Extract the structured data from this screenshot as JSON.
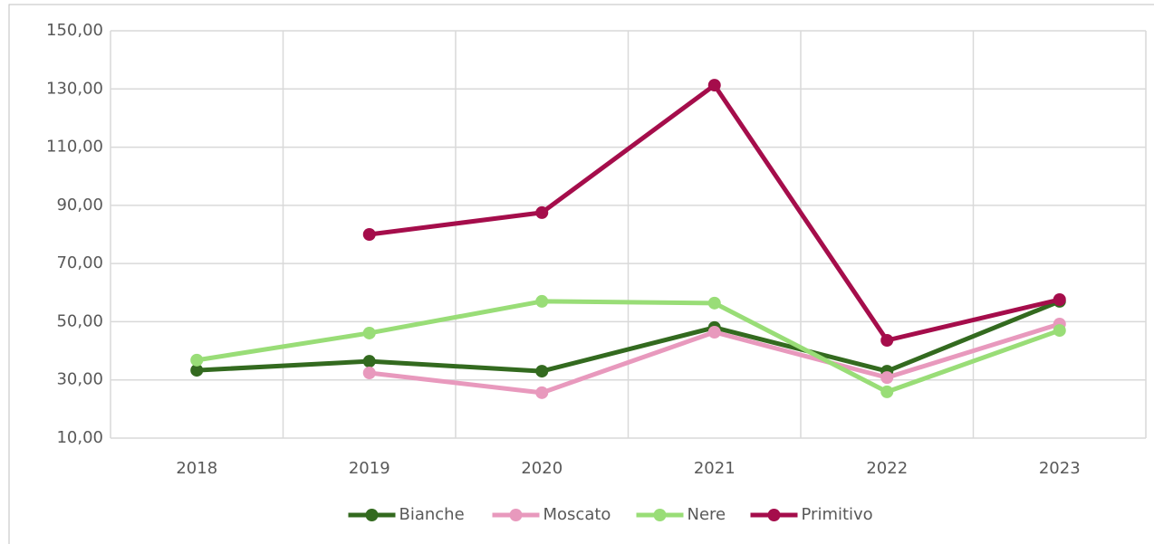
{
  "chart_data": {
    "type": "line",
    "categories": [
      "2018",
      "2019",
      "2020",
      "2021",
      "2022",
      "2023"
    ],
    "series": [
      {
        "name": "Bianche",
        "color": "#336a1f",
        "values": [
          33.3,
          36.4,
          33.0,
          48.0,
          33.0,
          57.0
        ]
      },
      {
        "name": "Moscato",
        "color": "#e899bd",
        "values": [
          null,
          32.4,
          25.6,
          46.4,
          30.8,
          49.2
        ]
      },
      {
        "name": "Nere",
        "color": "#99dd77",
        "values": [
          36.8,
          46.1,
          57.0,
          56.4,
          25.9,
          47.0
        ]
      },
      {
        "name": "Primitivo",
        "color": "#a50d4b",
        "values": [
          null,
          80.0,
          87.5,
          131.3,
          43.6,
          57.6
        ]
      }
    ],
    "ylim": [
      10,
      150
    ],
    "yticks": [
      {
        "value": 10,
        "label": "10,00"
      },
      {
        "value": 30,
        "label": "30,00"
      },
      {
        "value": 50,
        "label": "50,00"
      },
      {
        "value": 70,
        "label": "70,00"
      },
      {
        "value": 90,
        "label": "90,00"
      },
      {
        "value": 110,
        "label": "110,00"
      },
      {
        "value": 130,
        "label": "130,00"
      },
      {
        "value": 150,
        "label": "150,00"
      }
    ],
    "grid": true,
    "legend": "bottom"
  }
}
